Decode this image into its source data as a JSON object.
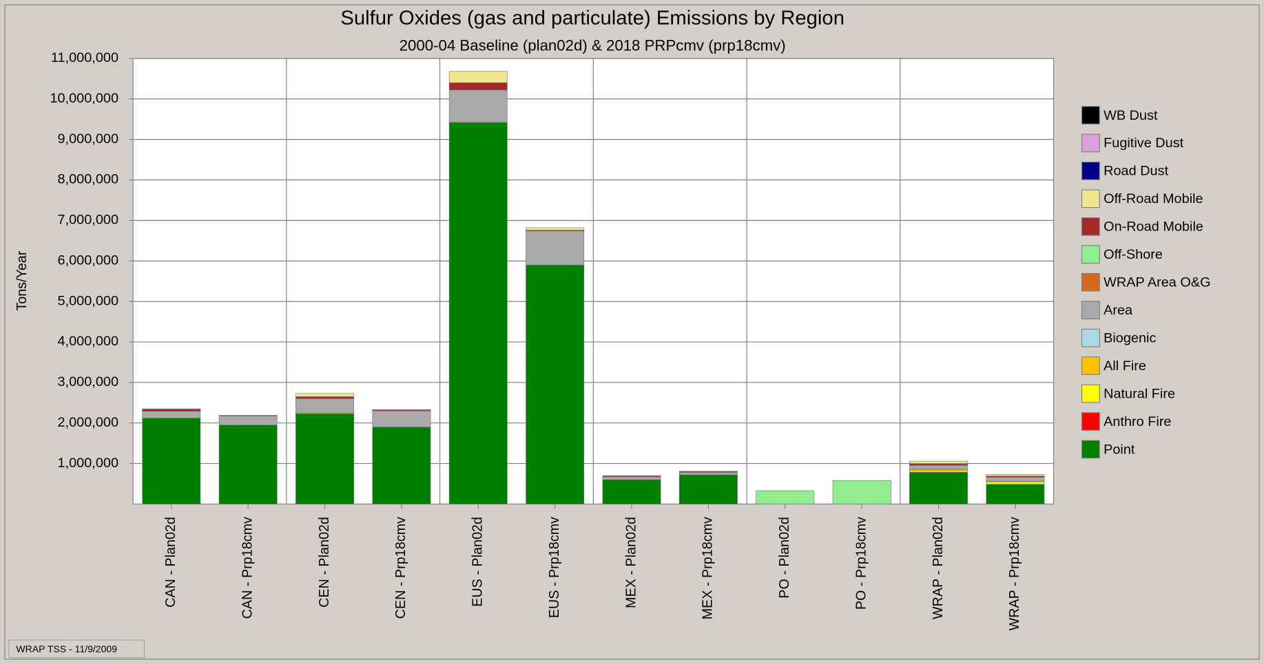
{
  "chart_data": {
    "type": "stacked_bar",
    "title": "Sulfur Oxides (gas and particulate) Emissions by Region",
    "subtitle": "2000-04 Baseline (plan02d) & 2018 PRPcmv (prp18cmv)",
    "y_label": "Tons/Year",
    "footer": "WRAP TSS - 11/9/2009",
    "categories": [
      "CAN - Plan02d",
      "CAN - Prp18cmv",
      "CEN - Plan02d",
      "CEN - Prp18cmv",
      "EUS - Plan02d",
      "EUS - Prp18cmv",
      "MEX - Plan02d",
      "MEX - Prp18cmv",
      "PO - Plan02d",
      "PO - Prp18cmv",
      "WRAP - Plan02d",
      "WRAP - Prp18cmv"
    ],
    "ylim": [
      0,
      11000000
    ],
    "yticks": [
      {
        "value": 1000000,
        "label": "1,000,000"
      },
      {
        "value": 2000000,
        "label": "2,000,000"
      },
      {
        "value": 3000000,
        "label": "3,000,000"
      },
      {
        "value": 4000000,
        "label": "4,000,000"
      },
      {
        "value": 5000000,
        "label": "5,000,000"
      },
      {
        "value": 6000000,
        "label": "6,000,000"
      },
      {
        "value": 7000000,
        "label": "7,000,000"
      },
      {
        "value": 8000000,
        "label": "8,000,000"
      },
      {
        "value": 9000000,
        "label": "9,000,000"
      },
      {
        "value": 10000000,
        "label": "10,000,000"
      },
      {
        "value": 11000000,
        "label": "11,000,000"
      }
    ],
    "grid": true,
    "legend": "right",
    "series": [
      {
        "name": "Point",
        "color": "#008000",
        "values": [
          2120000,
          1950000,
          2230000,
          1900000,
          9420000,
          5900000,
          600000,
          720000,
          0,
          0,
          780000,
          480000
        ]
      },
      {
        "name": "Anthro Fire",
        "color": "#ff0000",
        "values": [
          0,
          0,
          0,
          0,
          0,
          0,
          0,
          0,
          0,
          0,
          10000,
          10000
        ]
      },
      {
        "name": "Natural Fire",
        "color": "#ffff00",
        "values": [
          0,
          0,
          20000,
          0,
          0,
          0,
          0,
          0,
          0,
          0,
          40000,
          60000
        ]
      },
      {
        "name": "All Fire",
        "color": "#ffc000",
        "values": [
          0,
          0,
          0,
          0,
          0,
          0,
          0,
          0,
          0,
          0,
          30000,
          10000
        ]
      },
      {
        "name": "Biogenic",
        "color": "#add8e6",
        "values": [
          0,
          0,
          0,
          0,
          0,
          0,
          0,
          0,
          0,
          0,
          0,
          0
        ]
      },
      {
        "name": "Area",
        "color": "#a9a9a9",
        "values": [
          170000,
          220000,
          350000,
          400000,
          800000,
          840000,
          70000,
          60000,
          0,
          0,
          90000,
          100000
        ]
      },
      {
        "name": "WRAP Area O&G",
        "color": "#d2691e",
        "values": [
          0,
          0,
          0,
          0,
          0,
          0,
          0,
          0,
          0,
          0,
          10000,
          0
        ]
      },
      {
        "name": "Off-Shore",
        "color": "#90ee90",
        "values": [
          0,
          0,
          0,
          0,
          0,
          0,
          0,
          0,
          330000,
          580000,
          0,
          0
        ]
      },
      {
        "name": "On-Road Mobile",
        "color": "#a52a2a",
        "values": [
          50000,
          10000,
          50000,
          20000,
          180000,
          20000,
          20000,
          20000,
          0,
          0,
          40000,
          30000
        ]
      },
      {
        "name": "Off-Road Mobile",
        "color": "#f0e68c",
        "values": [
          10000,
          10000,
          80000,
          10000,
          280000,
          60000,
          10000,
          10000,
          0,
          0,
          60000,
          40000
        ]
      },
      {
        "name": "Road Dust",
        "color": "#00008b",
        "values": [
          0,
          0,
          0,
          0,
          0,
          0,
          0,
          0,
          0,
          0,
          0,
          0
        ]
      },
      {
        "name": "Fugitive Dust",
        "color": "#dda0dd",
        "values": [
          0,
          0,
          0,
          0,
          0,
          0,
          0,
          0,
          0,
          0,
          0,
          0
        ]
      },
      {
        "name": "WB Dust",
        "color": "#000000",
        "values": [
          0,
          0,
          0,
          0,
          0,
          0,
          0,
          0,
          0,
          0,
          0,
          0
        ]
      }
    ]
  }
}
